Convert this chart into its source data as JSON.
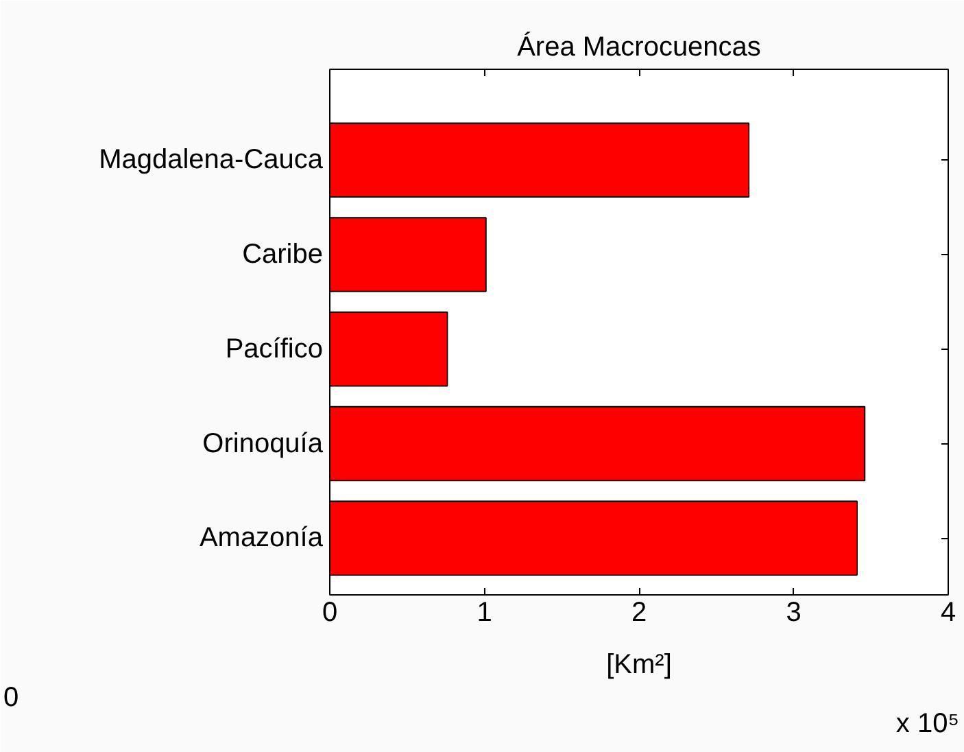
{
  "chart_data": {
    "type": "bar",
    "orientation": "horizontal",
    "title": "Área Macrocuencas",
    "xlabel": "[Km²]",
    "categories": [
      "Magdalena-Cauca",
      "Caribe",
      "Pacífico",
      "Orinoquía",
      "Amazonía"
    ],
    "values": [
      2.71,
      1.01,
      0.76,
      3.46,
      3.41
    ],
    "color": "#ff0000",
    "xlim": [
      0,
      4
    ],
    "xticks": [
      0,
      1,
      2,
      3,
      4
    ],
    "grid": false,
    "annotations": [
      "0",
      "x 10⁵"
    ]
  }
}
